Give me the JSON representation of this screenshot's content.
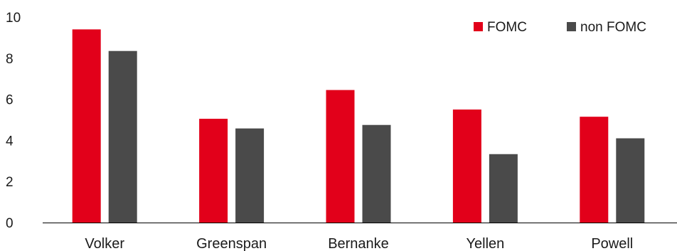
{
  "chart_data": {
    "type": "bar",
    "categories": [
      "Volker",
      "Greenspan",
      "Bernanke",
      "Yellen",
      "Powell"
    ],
    "series": [
      {
        "name": "FOMC",
        "values": [
          9.4,
          5.05,
          6.45,
          5.5,
          5.15
        ],
        "color": "#e2001a"
      },
      {
        "name": "non FOMC",
        "values": [
          8.35,
          4.58,
          4.75,
          3.33,
          4.1
        ],
        "color": "#4a4a4a"
      }
    ],
    "yticks": [
      "0",
      "2",
      "4",
      "6",
      "8",
      "10"
    ],
    "ylim": [
      0,
      10
    ],
    "grid": false,
    "legend_position": "top-right",
    "title": "",
    "xlabel": "",
    "ylabel": ""
  }
}
